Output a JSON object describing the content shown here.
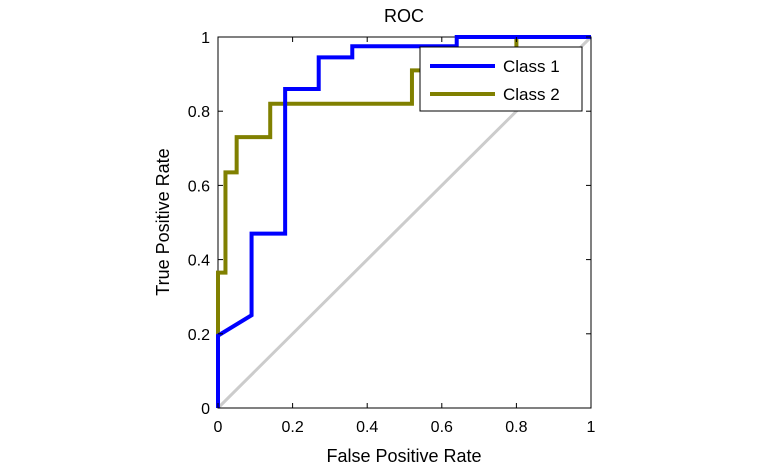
{
  "chart_data": {
    "type": "line",
    "title": "ROC",
    "xlabel": "False Positive Rate",
    "ylabel": "True Positive Rate",
    "xlim": [
      0,
      1
    ],
    "ylim": [
      0,
      1
    ],
    "x_ticks": [
      "0",
      "0.2",
      "0.4",
      "0.6",
      "0.8",
      "1"
    ],
    "y_ticks": [
      "0",
      "0.2",
      "0.4",
      "0.6",
      "0.8",
      "1"
    ],
    "grid": false,
    "legend_position": "top-right",
    "diagonal": {
      "x": [
        0,
        1
      ],
      "y": [
        0,
        1
      ],
      "color": "#cccccc"
    },
    "series": [
      {
        "name": "Class 1",
        "color": "#0000ff",
        "x": [
          0,
          0,
          0.09,
          0.09,
          0.18,
          0.18,
          0.27,
          0.27,
          0.36,
          0.36,
          0.64,
          0.64,
          1
        ],
        "y": [
          0,
          0.195,
          0.25,
          0.47,
          0.47,
          0.86,
          0.86,
          0.945,
          0.945,
          0.975,
          0.975,
          1,
          1
        ]
      },
      {
        "name": "Class 2",
        "color": "#808000",
        "x": [
          0,
          0,
          0.02,
          0.02,
          0.05,
          0.05,
          0.14,
          0.14,
          0.52,
          0.52,
          0.57,
          0.57,
          0.8,
          0.8,
          1
        ],
        "y": [
          0,
          0.365,
          0.365,
          0.635,
          0.635,
          0.73,
          0.73,
          0.82,
          0.82,
          0.91,
          0.91,
          0.96,
          0.96,
          1,
          1
        ]
      }
    ]
  }
}
